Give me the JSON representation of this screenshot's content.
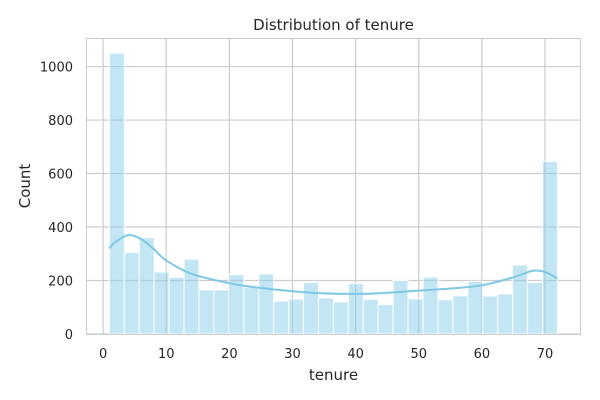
{
  "chart_data": {
    "type": "bar",
    "title": "Distribution of tenure",
    "xlabel": "tenure",
    "ylabel": "Count",
    "xlim": [
      -2.55,
      75.55
    ],
    "ylim": [
      0,
      1103
    ],
    "xticks": [
      0,
      10,
      20,
      30,
      40,
      50,
      60,
      70
    ],
    "yticks": [
      0,
      200,
      400,
      600,
      800,
      1000
    ],
    "grid": true,
    "bar_color": "#87ceeb",
    "kde_color": "#7ec8e3",
    "bins": [
      {
        "x0": 1.0,
        "x1": 3.37,
        "count": 1050
      },
      {
        "x0": 3.37,
        "x1": 5.73,
        "count": 305
      },
      {
        "x0": 5.73,
        "x1": 8.1,
        "count": 360
      },
      {
        "x0": 8.1,
        "x1": 10.46,
        "count": 232
      },
      {
        "x0": 10.46,
        "x1": 12.83,
        "count": 212
      },
      {
        "x0": 12.83,
        "x1": 15.19,
        "count": 280
      },
      {
        "x0": 15.19,
        "x1": 17.56,
        "count": 165
      },
      {
        "x0": 17.56,
        "x1": 19.93,
        "count": 165
      },
      {
        "x0": 19.93,
        "x1": 22.29,
        "count": 222
      },
      {
        "x0": 22.29,
        "x1": 24.66,
        "count": 175
      },
      {
        "x0": 24.66,
        "x1": 27.02,
        "count": 225
      },
      {
        "x0": 27.02,
        "x1": 29.39,
        "count": 123
      },
      {
        "x0": 29.39,
        "x1": 31.75,
        "count": 131
      },
      {
        "x0": 31.75,
        "x1": 34.12,
        "count": 193
      },
      {
        "x0": 34.12,
        "x1": 36.49,
        "count": 135
      },
      {
        "x0": 36.49,
        "x1": 38.85,
        "count": 120
      },
      {
        "x0": 38.85,
        "x1": 41.22,
        "count": 188
      },
      {
        "x0": 41.22,
        "x1": 43.58,
        "count": 130
      },
      {
        "x0": 43.58,
        "x1": 45.95,
        "count": 110
      },
      {
        "x0": 45.95,
        "x1": 48.31,
        "count": 200
      },
      {
        "x0": 48.31,
        "x1": 50.68,
        "count": 132
      },
      {
        "x0": 50.68,
        "x1": 53.05,
        "count": 213
      },
      {
        "x0": 53.05,
        "x1": 55.41,
        "count": 128
      },
      {
        "x0": 55.41,
        "x1": 57.78,
        "count": 143
      },
      {
        "x0": 57.78,
        "x1": 60.14,
        "count": 197
      },
      {
        "x0": 60.14,
        "x1": 62.51,
        "count": 142
      },
      {
        "x0": 62.51,
        "x1": 64.87,
        "count": 150
      },
      {
        "x0": 64.87,
        "x1": 67.24,
        "count": 258
      },
      {
        "x0": 67.24,
        "x1": 69.61,
        "count": 193
      },
      {
        "x0": 69.61,
        "x1": 71.97,
        "count": 645
      }
    ],
    "kde": {
      "x": [
        1,
        2,
        4,
        6,
        8,
        10,
        14,
        20,
        25,
        30,
        35,
        40,
        45,
        50,
        55,
        60,
        65,
        68,
        70,
        72
      ],
      "y": [
        320,
        345,
        370,
        355,
        318,
        275,
        225,
        190,
        172,
        160,
        152,
        150,
        154,
        162,
        170,
        182,
        212,
        236,
        232,
        207
      ]
    }
  }
}
